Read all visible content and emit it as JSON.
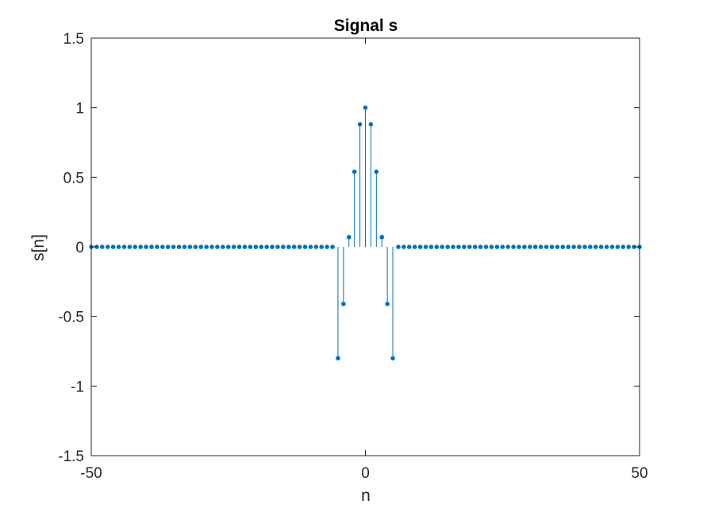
{
  "chart_data": {
    "type": "stem",
    "title": "Signal s",
    "xlabel": "n",
    "ylabel": "s[n]",
    "xlim": [
      -50,
      50
    ],
    "ylim": [
      -1.5,
      1.5
    ],
    "xticks": [
      -50,
      0,
      50
    ],
    "xtick_labels": [
      "-50",
      "0",
      "50"
    ],
    "yticks": [
      1.5,
      1,
      0.5,
      0,
      -0.5,
      -1,
      -1.5
    ],
    "ytick_labels": [
      "1.5",
      "1",
      "0.5",
      "0",
      "-0.5",
      "-1",
      "-1.5"
    ],
    "grid": false,
    "color": "#0072BD",
    "series": [
      {
        "x": [
          -50,
          -49,
          -48,
          -47,
          -46,
          -45,
          -44,
          -43,
          -42,
          -41,
          -40,
          -39,
          -38,
          -37,
          -36,
          -35,
          -34,
          -33,
          -32,
          -31,
          -30,
          -29,
          -28,
          -27,
          -26,
          -25,
          -24,
          -23,
          -22,
          -21,
          -20,
          -19,
          -18,
          -17,
          -16,
          -15,
          -14,
          -13,
          -12,
          -11,
          -10,
          -9,
          -8,
          -7,
          -6,
          -5,
          -4,
          -3,
          -2,
          -1,
          0,
          1,
          2,
          3,
          4,
          5,
          6,
          7,
          8,
          9,
          10,
          11,
          12,
          13,
          14,
          15,
          16,
          17,
          18,
          19,
          20,
          21,
          22,
          23,
          24,
          25,
          26,
          27,
          28,
          29,
          30,
          31,
          32,
          33,
          34,
          35,
          36,
          37,
          38,
          39,
          40,
          41,
          42,
          43,
          44,
          45,
          46,
          47,
          48,
          49,
          50
        ],
        "y": [
          0,
          0,
          0,
          0,
          0,
          0,
          0,
          0,
          0,
          0,
          0,
          0,
          0,
          0,
          0,
          0,
          0,
          0,
          0,
          0,
          0,
          0,
          0,
          0,
          0,
          0,
          0,
          0,
          0,
          0,
          0,
          0,
          0,
          0,
          0,
          0,
          0,
          0,
          0,
          0,
          0,
          0,
          0,
          0,
          0,
          -0.8,
          -0.41,
          0.07,
          0.54,
          0.88,
          1,
          0.88,
          0.54,
          0.07,
          -0.41,
          -0.8,
          0,
          0,
          0,
          0,
          0,
          0,
          0,
          0,
          0,
          0,
          0,
          0,
          0,
          0,
          0,
          0,
          0,
          0,
          0,
          0,
          0,
          0,
          0,
          0,
          0,
          0,
          0,
          0,
          0,
          0,
          0,
          0,
          0,
          0,
          0,
          0,
          0,
          0,
          0,
          0,
          0,
          0,
          0,
          0,
          0
        ]
      }
    ]
  }
}
